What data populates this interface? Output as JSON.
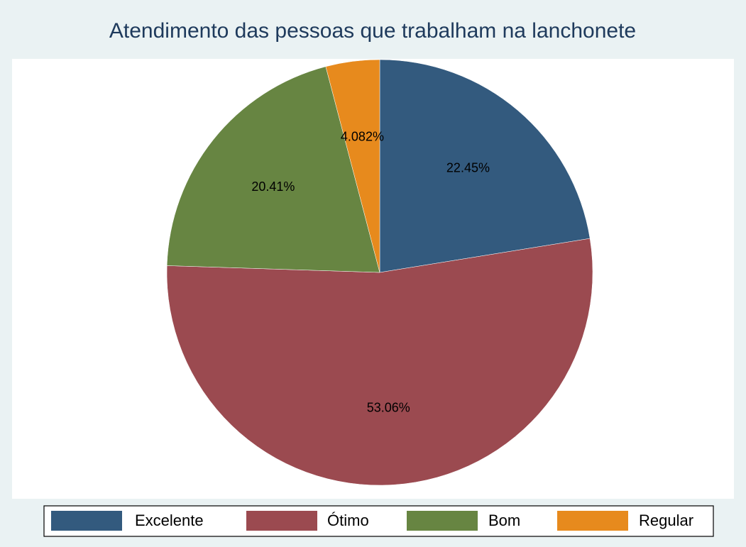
{
  "chart_data": {
    "type": "pie",
    "title": "Atendimento das pessoas que trabalham na lanchonete",
    "categories": [
      "Excelente",
      "Ótimo",
      "Bom",
      "Regular"
    ],
    "values": [
      22.45,
      53.06,
      20.41,
      4.082
    ],
    "value_labels": [
      "22.45%",
      "53.06%",
      "20.41%",
      "4.082%"
    ],
    "colors": [
      "#335a7e",
      "#9b4a50",
      "#678542",
      "#e78a1d"
    ],
    "legend": "bottom"
  }
}
